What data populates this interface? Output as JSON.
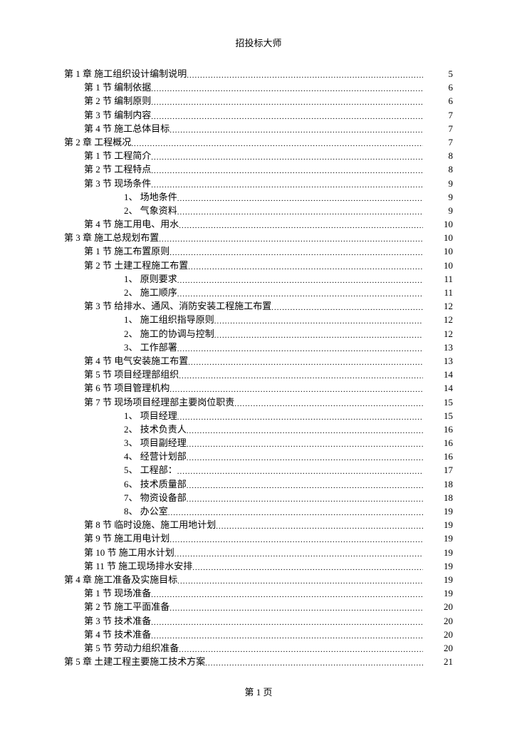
{
  "header": "招投标大师",
  "footer": "第 1 页",
  "toc": [
    {
      "level": 0,
      "label": "第 1 章  施工组织设计编制说明",
      "page": "5"
    },
    {
      "level": 1,
      "label": "第 1 节  编制依据",
      "page": "6"
    },
    {
      "level": 1,
      "label": "第 2 节  编制原则",
      "page": "6"
    },
    {
      "level": 1,
      "label": "第 3 节  编制内容",
      "page": "7"
    },
    {
      "level": 1,
      "label": "第 4 节  施工总体目标",
      "page": "7"
    },
    {
      "level": 0,
      "label": "第 2 章  工程概况",
      "page": "7"
    },
    {
      "level": 1,
      "label": "第 1 节  工程简介",
      "page": "8"
    },
    {
      "level": 1,
      "label": "第 2 节  工程特点",
      "page": "8"
    },
    {
      "level": 1,
      "label": "第 3 节  现场条件",
      "page": "9"
    },
    {
      "level": 2,
      "label": "1、 场地条件",
      "page": "9"
    },
    {
      "level": 2,
      "label": "2、 气象资料",
      "page": "9"
    },
    {
      "level": 1,
      "label": "第 4 节  施工用电、用水",
      "page": "10"
    },
    {
      "level": 0,
      "label": "第 3 章  施工总规划布置",
      "page": "10"
    },
    {
      "level": 1,
      "label": "第 1 节  施工布置原则",
      "page": "10"
    },
    {
      "level": 1,
      "label": "第 2 节  土建工程施工布置",
      "page": "10"
    },
    {
      "level": 2,
      "label": "1、 原则要求",
      "page": "11"
    },
    {
      "level": 2,
      "label": "2、 施工顺序",
      "page": "11"
    },
    {
      "level": 1,
      "label": "第 3 节  给排水、通风、消防安装工程施工布置",
      "page": "12"
    },
    {
      "level": 2,
      "label": "1、 施工组织指导原则",
      "page": "12"
    },
    {
      "level": 2,
      "label": "2、 施工的协调与控制",
      "page": "12"
    },
    {
      "level": 2,
      "label": "3、 工作部署",
      "page": "13"
    },
    {
      "level": 1,
      "label": "第 4 节  电气安装施工布置",
      "page": "13"
    },
    {
      "level": 1,
      "label": "第 5 节  项目经理部组织",
      "page": "14"
    },
    {
      "level": 1,
      "label": "第 6 节  项目管理机构",
      "page": "14"
    },
    {
      "level": 1,
      "label": "第 7 节  现场项目经理部主要岗位职责",
      "page": "15"
    },
    {
      "level": 2,
      "label": "1、 项目经理",
      "page": "15"
    },
    {
      "level": 2,
      "label": "2、 技术负责人",
      "page": "16"
    },
    {
      "level": 2,
      "label": "3、 项目副经理",
      "page": "16"
    },
    {
      "level": 2,
      "label": "4、 经营计划部",
      "page": "16"
    },
    {
      "level": 2,
      "label": "5、 工程部：",
      "page": "17"
    },
    {
      "level": 2,
      "label": "6、 技术质量部",
      "page": "18"
    },
    {
      "level": 2,
      "label": "7、 物资设备部",
      "page": "18"
    },
    {
      "level": 2,
      "label": "8、 办公室",
      "page": "19"
    },
    {
      "level": 1,
      "label": "第 8 节  临时设施、施工用地计划",
      "page": "19"
    },
    {
      "level": 1,
      "label": "第 9 节  施工用电计划",
      "page": "19"
    },
    {
      "level": 1,
      "label": "第 10 节  施工用水计划",
      "page": "19"
    },
    {
      "level": 1,
      "label": "第 11 节  施工现场排水安排",
      "page": "19"
    },
    {
      "level": 0,
      "label": "第 4 章  施工准备及实施目标",
      "page": "19"
    },
    {
      "level": 1,
      "label": "第 1 节  现场准备",
      "page": "19"
    },
    {
      "level": 1,
      "label": "第 2 节  施工平面准备",
      "page": "20"
    },
    {
      "level": 1,
      "label": "第 3 节  技术准备",
      "page": "20"
    },
    {
      "level": 1,
      "label": "第 4 节  技术准备",
      "page": "20"
    },
    {
      "level": 1,
      "label": "第 5 节  劳动力组织准备",
      "page": "20"
    },
    {
      "level": 0,
      "label": "第 5 章  土建工程主要施工技术方案",
      "page": "21"
    }
  ]
}
